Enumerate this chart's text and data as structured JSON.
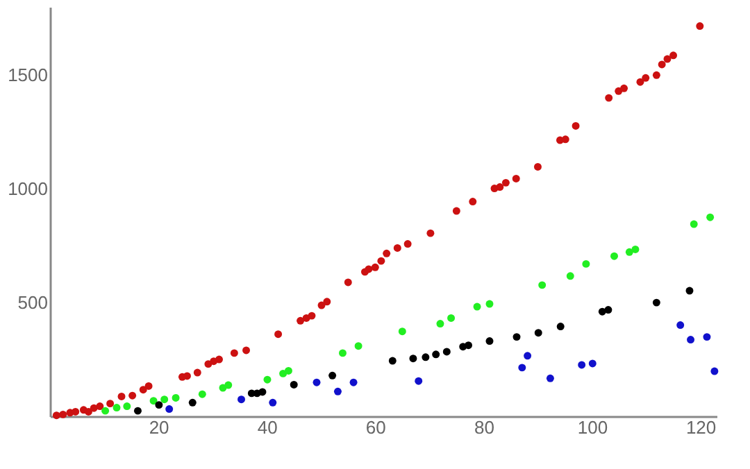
{
  "chart_data": {
    "type": "scatter",
    "xlim": [
      0,
      123
    ],
    "ylim": [
      0,
      1800
    ],
    "xticks": [
      20,
      40,
      60,
      80,
      100,
      120
    ],
    "yticks": [
      500,
      1000,
      1500
    ],
    "grid": false,
    "marker": "circle",
    "series": [
      {
        "color": "#cc1111",
        "x": [
          1.2,
          2.4,
          3.7,
          4.7,
          6.2,
          7.1,
          8.1,
          9.2,
          11.1,
          13.2,
          15.2,
          17.2,
          18.2,
          24.4,
          25.3,
          27.2,
          29.2,
          30.2,
          31.2,
          34.0,
          36.2,
          42.1,
          46.2,
          47.3,
          48.3,
          50.1,
          51.1,
          55.0,
          58.1,
          58.8,
          60.0,
          61.1,
          62.1,
          64.1,
          66.0,
          70.2,
          75.0,
          78.0,
          82.0,
          83.0,
          84.1,
          86.0,
          90.0,
          94.1,
          95.1,
          97.0,
          103.1,
          104.9,
          105.9,
          108.9,
          109.9,
          111.9,
          112.9,
          113.9,
          115.0,
          119.9
        ],
        "values": [
          4,
          8,
          16,
          20,
          28,
          20,
          36,
          44,
          56,
          87,
          91,
          117,
          133,
          173,
          177,
          192,
          230,
          242,
          250,
          278,
          290,
          361,
          420,
          432,
          442,
          488,
          504,
          589,
          635,
          647,
          655,
          683,
          716,
          740,
          758,
          805,
          903,
          944,
          1002,
          1008,
          1027,
          1045,
          1097,
          1214,
          1218,
          1277,
          1400,
          1430,
          1442,
          1470,
          1488,
          1500,
          1547,
          1571,
          1587,
          1716
        ]
      },
      {
        "color": "#22ee22",
        "x": [
          10.2,
          12.3,
          14.2,
          19.1,
          21.1,
          23.2,
          28.1,
          31.9,
          32.9,
          40.1,
          43.0,
          44.0,
          54.0,
          56.9,
          65.0,
          72.0,
          74.0,
          78.8,
          81.1,
          90.8,
          96.0,
          98.9,
          104.1,
          106.9,
          108.0,
          118.8,
          121.8
        ],
        "values": [
          24,
          38,
          44,
          68,
          74,
          81,
          97,
          125,
          137,
          161,
          188,
          200,
          278,
          309,
          373,
          407,
          432,
          482,
          494,
          577,
          617,
          670,
          704,
          722,
          734,
          845,
          875
        ]
      },
      {
        "color": "#000000",
        "x": [
          16.2,
          20.1,
          26.3,
          37.2,
          38.2,
          39.2,
          45.0,
          52.1,
          63.2,
          67.0,
          69.3,
          71.2,
          73.2,
          76.2,
          77.2,
          81.1,
          86.1,
          90.1,
          94.2,
          101.9,
          103.0,
          111.9,
          118.0
        ],
        "values": [
          24,
          50,
          60,
          101,
          101,
          107,
          139,
          179,
          244,
          254,
          260,
          272,
          284,
          306,
          312,
          331,
          349,
          367,
          395,
          460,
          468,
          500,
          552
        ]
      },
      {
        "color": "#1111cc",
        "x": [
          22.0,
          35.3,
          41.1,
          49.2,
          53.1,
          56.0,
          68.0,
          87.1,
          88.1,
          92.3,
          98.1,
          100.1,
          116.3,
          118.2,
          121.2,
          122.6
        ],
        "values": [
          32,
          74,
          60,
          149,
          109,
          149,
          155,
          214,
          266,
          167,
          226,
          232,
          401,
          337,
          349,
          198
        ]
      }
    ]
  }
}
